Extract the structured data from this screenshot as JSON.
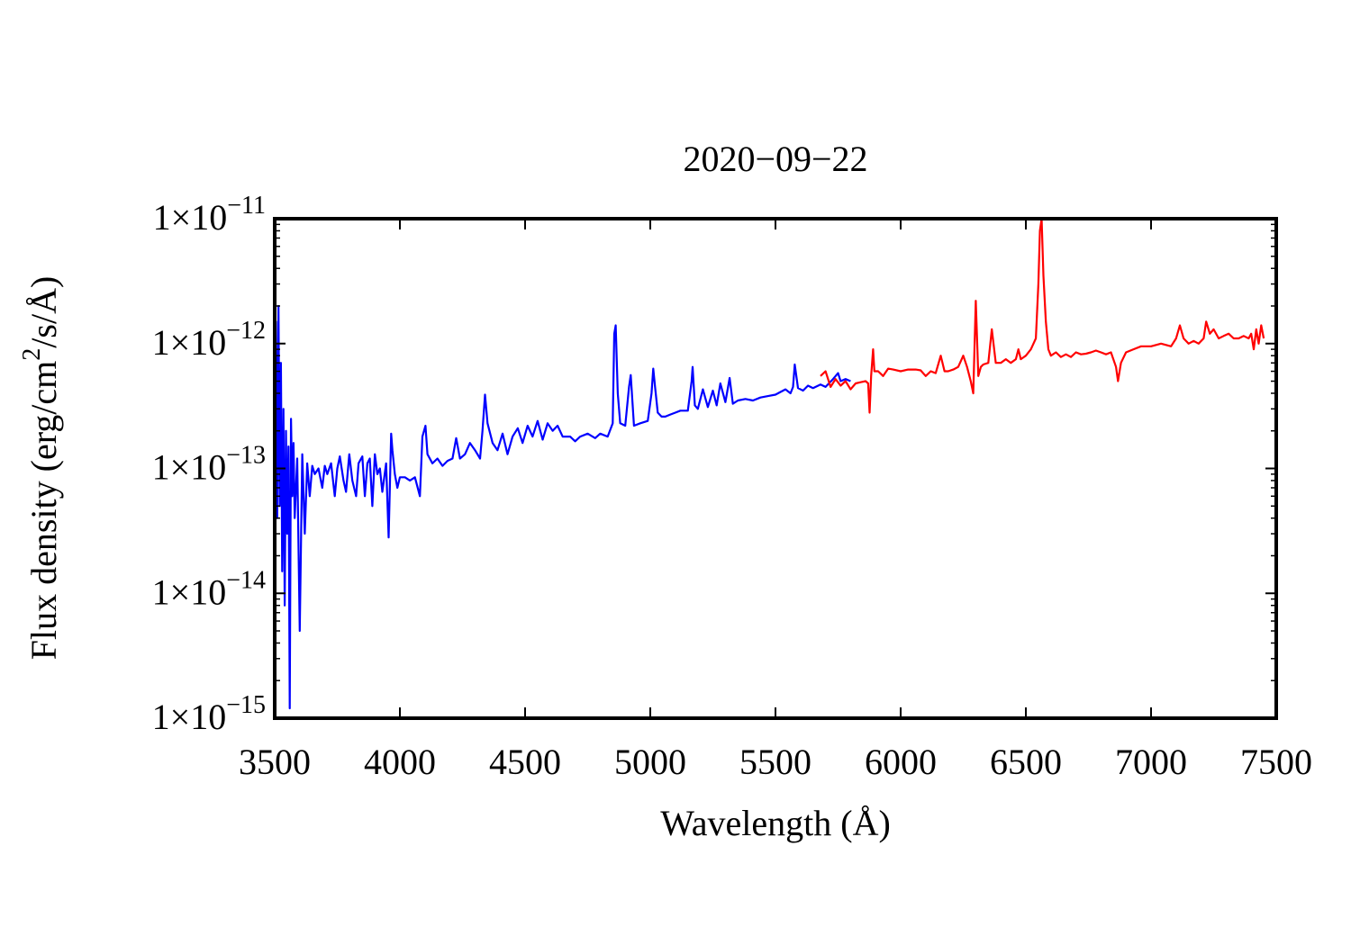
{
  "chart_data": {
    "type": "line",
    "title": "2020−09−22",
    "xlabel": "Wavelength (Å)",
    "ylabel": {
      "prefix": "Flux density (erg/cm",
      "superscript": "2",
      "suffix": "/s/Å)"
    },
    "xlim": [
      3500,
      7500
    ],
    "ylim": [
      1e-15,
      1e-11
    ],
    "yscale": "log",
    "grid": false,
    "legend": "none",
    "x_ticks": [
      "3500",
      "4000",
      "4500",
      "5000",
      "5500",
      "6000",
      "6500",
      "7000",
      "7500"
    ],
    "y_ticks": [
      {
        "base": "1×10",
        "exponent": "−15"
      },
      {
        "base": "1×10",
        "exponent": "−14"
      },
      {
        "base": "1×10",
        "exponent": "−13"
      },
      {
        "base": "1×10",
        "exponent": "−12"
      },
      {
        "base": "1×10",
        "exponent": "−11"
      }
    ],
    "series": [
      {
        "color": "#0000ff",
        "x": [
          3500,
          3505,
          3510,
          3515,
          3520,
          3525,
          3530,
          3535,
          3540,
          3545,
          3550,
          3555,
          3560,
          3565,
          3570,
          3575,
          3580,
          3590,
          3600,
          3610,
          3620,
          3630,
          3640,
          3650,
          3660,
          3675,
          3690,
          3700,
          3710,
          3725,
          3740,
          3750,
          3760,
          3775,
          3785,
          3798,
          3810,
          3825,
          3835,
          3850,
          3860,
          3870,
          3880,
          3890,
          3900,
          3910,
          3920,
          3930,
          3945,
          3955,
          3965,
          3970,
          3980,
          3990,
          4000,
          4020,
          4040,
          4060,
          4080,
          4090,
          4102,
          4110,
          4130,
          4150,
          4170,
          4190,
          4210,
          4225,
          4240,
          4260,
          4280,
          4300,
          4320,
          4330,
          4340,
          4350,
          4370,
          4390,
          4410,
          4430,
          4450,
          4471,
          4490,
          4510,
          4530,
          4550,
          4570,
          4590,
          4610,
          4630,
          4650,
          4680,
          4700,
          4720,
          4750,
          4780,
          4800,
          4830,
          4850,
          4856,
          4862,
          4870,
          4880,
          4900,
          4915,
          4922,
          4935,
          4960,
          4990,
          5005,
          5012,
          5019,
          5030,
          5045,
          5060,
          5080,
          5100,
          5120,
          5150,
          5165,
          5169,
          5178,
          5190,
          5210,
          5230,
          5250,
          5265,
          5280,
          5300,
          5317,
          5330,
          5350,
          5380,
          5410,
          5440,
          5470,
          5500,
          5520,
          5540,
          5560,
          5570,
          5577,
          5590,
          5610,
          5630,
          5650,
          5680,
          5700,
          5730,
          5750,
          5760,
          5780,
          5800
        ],
        "y": [
          8e-14,
          1.5e-12,
          4e-14,
          2e-12,
          5e-14,
          7e-13,
          1.5e-14,
          3e-13,
          8e-15,
          2e-13,
          3e-14,
          1.5e-13,
          1.2e-15,
          2.5e-13,
          6e-14,
          1.6e-13,
          4e-14,
          1.2e-13,
          5e-15,
          1.3e-13,
          3e-14,
          1.1e-13,
          6e-14,
          1.05e-13,
          9e-14,
          1e-13,
          7e-14,
          1.05e-13,
          9e-14,
          1.1e-13,
          6e-14,
          1e-13,
          1.25e-13,
          8e-14,
          6.5e-14,
          1.3e-13,
          8e-14,
          6e-14,
          1.1e-13,
          1.25e-13,
          6e-14,
          1.1e-13,
          1.2e-13,
          5e-14,
          1.3e-13,
          9e-14,
          1e-13,
          6.5e-14,
          1.1e-13,
          2.8e-14,
          1.9e-13,
          1.4e-13,
          9e-14,
          7e-14,
          8.5e-14,
          8.5e-14,
          8e-14,
          8.5e-14,
          6e-14,
          1.8e-13,
          2.2e-13,
          1.3e-13,
          1.1e-13,
          1.2e-13,
          1.05e-13,
          1.15e-13,
          1.2e-13,
          1.75e-13,
          1.2e-13,
          1.3e-13,
          1.6e-13,
          1.4e-13,
          1.2e-13,
          2e-13,
          3.9e-13,
          2.3e-13,
          1.6e-13,
          1.4e-13,
          1.9e-13,
          1.3e-13,
          1.8e-13,
          2.1e-13,
          1.6e-13,
          2.2e-13,
          1.8e-13,
          2.4e-13,
          1.7e-13,
          2.3e-13,
          2e-13,
          2.2e-13,
          1.8e-13,
          1.8e-13,
          1.65e-13,
          1.8e-13,
          1.9e-13,
          1.75e-13,
          1.9e-13,
          1.8e-13,
          2.3e-13,
          1.2e-12,
          1.4e-12,
          4e-13,
          2.3e-13,
          2.2e-13,
          4.5e-13,
          5.6e-13,
          2.2e-13,
          2.3e-13,
          2.4e-13,
          4e-13,
          6.3e-13,
          4.5e-13,
          2.8e-13,
          2.6e-13,
          2.6e-13,
          2.7e-13,
          2.8e-13,
          2.9e-13,
          2.9e-13,
          5e-13,
          6.5e-13,
          3.2e-13,
          3e-13,
          4.3e-13,
          3.1e-13,
          4.2e-13,
          3.2e-13,
          4.8e-13,
          3.4e-13,
          5.3e-13,
          3.3e-13,
          3.5e-13,
          3.6e-13,
          3.5e-13,
          3.7e-13,
          3.8e-13,
          3.9e-13,
          4.1e-13,
          4.3e-13,
          4e-13,
          4.5e-13,
          6.8e-13,
          4.4e-13,
          4.2e-13,
          4.6e-13,
          4.4e-13,
          4.7e-13,
          4.5e-13,
          5.2e-13,
          5.8e-13,
          5e-13,
          5.2e-13,
          5e-13
        ]
      },
      {
        "color": "#ff0000",
        "x": [
          5680,
          5700,
          5720,
          5740,
          5760,
          5780,
          5800,
          5820,
          5840,
          5860,
          5870,
          5876,
          5882,
          5890,
          5895,
          5910,
          5930,
          5950,
          5970,
          6000,
          6030,
          6060,
          6080,
          6100,
          6120,
          6140,
          6160,
          6175,
          6190,
          6210,
          6230,
          6250,
          6265,
          6280,
          6290,
          6300,
          6310,
          6320,
          6330,
          6350,
          6364,
          6380,
          6400,
          6420,
          6440,
          6460,
          6470,
          6480,
          6500,
          6520,
          6540,
          6550,
          6556,
          6563,
          6570,
          6580,
          6590,
          6600,
          6620,
          6640,
          6660,
          6680,
          6700,
          6720,
          6740,
          6760,
          6780,
          6800,
          6820,
          6840,
          6860,
          6868,
          6880,
          6900,
          6930,
          6960,
          7000,
          7040,
          7080,
          7100,
          7115,
          7130,
          7150,
          7170,
          7190,
          7210,
          7220,
          7235,
          7250,
          7270,
          7290,
          7310,
          7330,
          7350,
          7370,
          7390,
          7400,
          7410,
          7420,
          7430,
          7440,
          7450
        ],
        "y": [
          5.5e-13,
          6e-13,
          4.5e-13,
          5.2e-13,
          4.6e-13,
          5e-13,
          4.3e-13,
          4.8e-13,
          4.9e-13,
          5e-13,
          4.8e-13,
          2.8e-13,
          5.5e-13,
          9e-13,
          6e-13,
          6e-13,
          5.5e-13,
          6.3e-13,
          6.2e-13,
          6e-13,
          6.2e-13,
          6.2e-13,
          6.1e-13,
          5.5e-13,
          6e-13,
          5.8e-13,
          8e-13,
          6e-13,
          6e-13,
          6.2e-13,
          6.5e-13,
          8e-13,
          6.5e-13,
          5e-13,
          4e-13,
          2.2e-12,
          5.5e-13,
          6.5e-13,
          6.8e-13,
          7e-13,
          1.3e-12,
          7e-13,
          7e-13,
          7.5e-13,
          7e-13,
          7.5e-13,
          9e-13,
          7.5e-13,
          8e-13,
          9e-13,
          1.1e-12,
          3e-12,
          8e-12,
          1.2e-11,
          3.5e-12,
          1.5e-12,
          9e-13,
          8e-13,
          8.5e-13,
          7.8e-13,
          8.2e-13,
          7.8e-13,
          8.5e-13,
          8.2e-13,
          8.3e-13,
          8.5e-13,
          8.8e-13,
          8.5e-13,
          8.2e-13,
          8.5e-13,
          6.5e-13,
          5e-13,
          7e-13,
          8.5e-13,
          9e-13,
          9.5e-13,
          9.5e-13,
          1e-12,
          9.5e-13,
          1.1e-12,
          1.4e-12,
          1.1e-12,
          1e-12,
          1.05e-12,
          1e-12,
          1.1e-12,
          1.5e-12,
          1.2e-12,
          1.3e-12,
          1.1e-12,
          1.15e-12,
          1.2e-12,
          1.1e-12,
          1.1e-12,
          1.15e-12,
          1.1e-12,
          1.2e-12,
          9e-13,
          1.3e-12,
          1e-12,
          1.4e-12,
          1.1e-12
        ]
      }
    ]
  }
}
